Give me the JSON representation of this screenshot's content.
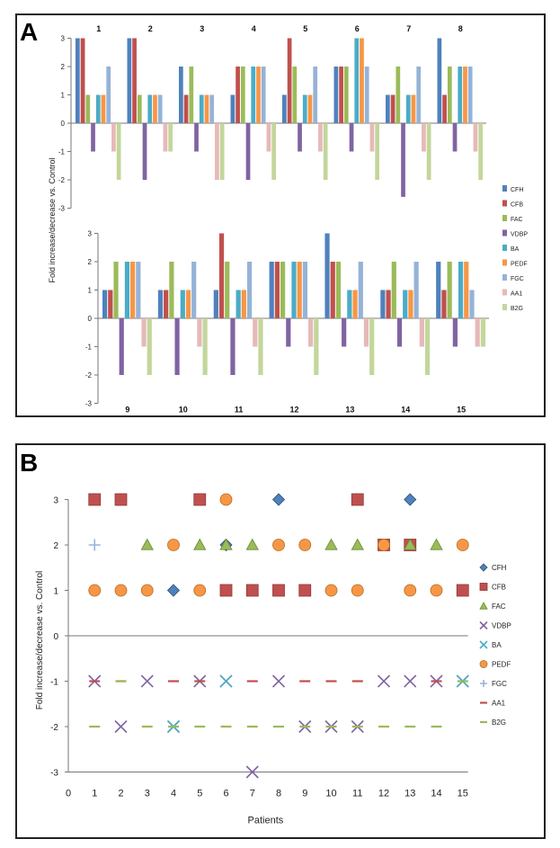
{
  "panel_a_letter": "A",
  "panel_b_letter": "B",
  "chart_data": [
    {
      "type": "bar",
      "panel": "A",
      "ylabel": "Fold increase/decrease vs. Control",
      "ylim": [
        -3,
        3
      ],
      "yticks": [
        3,
        2,
        1,
        0,
        -1,
        -2,
        -3
      ],
      "series_names": [
        "CFH",
        "CFB",
        "FAC",
        "VDBP",
        "BA",
        "PEDF",
        "FGC",
        "AA1",
        "B2G"
      ],
      "colors": [
        "#4f81bd",
        "#c0504d",
        "#9bbb59",
        "#8064a2",
        "#4bacc6",
        "#f79646",
        "#95b3d7",
        "#e6b9b8",
        "#c3d69b"
      ],
      "patients": [
        {
          "label": "1",
          "values": [
            3,
            3,
            1,
            -1,
            1,
            1,
            2,
            -1,
            -2
          ]
        },
        {
          "label": "2",
          "values": [
            3,
            3,
            1,
            -2,
            1,
            1,
            1,
            -1,
            -1
          ]
        },
        {
          "label": "3",
          "values": [
            2,
            1,
            2,
            -1,
            1,
            1,
            1,
            -2,
            -2
          ]
        },
        {
          "label": "4",
          "values": [
            1,
            2,
            2,
            -2,
            2,
            2,
            2,
            -1,
            -2
          ]
        },
        {
          "label": "5",
          "values": [
            1,
            3,
            2,
            -1,
            1,
            1,
            2,
            -1,
            -2
          ]
        },
        {
          "label": "6",
          "values": [
            2,
            2,
            2,
            -1,
            3,
            3,
            2,
            -1,
            -2
          ]
        },
        {
          "label": "7",
          "values": [
            1,
            1,
            2,
            -2.6,
            1,
            1,
            2,
            -1,
            -2
          ]
        },
        {
          "label": "8",
          "values": [
            3,
            1,
            2,
            -1,
            2,
            2,
            2,
            -1,
            -2
          ]
        },
        {
          "label": "9",
          "values": [
            1,
            1,
            2,
            -2,
            2,
            2,
            2,
            -1,
            -2
          ]
        },
        {
          "label": "10",
          "values": [
            1,
            1,
            2,
            -2,
            1,
            1,
            2,
            -1,
            -2
          ]
        },
        {
          "label": "11",
          "values": [
            1,
            3,
            2,
            -2,
            1,
            1,
            2,
            -1,
            -2
          ]
        },
        {
          "label": "12",
          "values": [
            2,
            2,
            2,
            -1,
            2,
            2,
            2,
            -1,
            -2
          ]
        },
        {
          "label": "13",
          "values": [
            3,
            2,
            2,
            -1,
            1,
            1,
            2,
            -1,
            -2
          ]
        },
        {
          "label": "14",
          "values": [
            1,
            1,
            2,
            -1,
            1,
            1,
            2,
            -1,
            -2
          ]
        },
        {
          "label": "15",
          "values": [
            2,
            1,
            2,
            -1,
            2,
            2,
            1,
            -1,
            -1
          ]
        }
      ],
      "legend_position": "right"
    },
    {
      "type": "scatter",
      "panel": "B",
      "xlabel": "Patients",
      "ylabel": "Fold increase/decrease vs. Control",
      "xlim": [
        0,
        15
      ],
      "ylim": [
        -3,
        3
      ],
      "xticks": [
        "0",
        "1",
        "2",
        "3",
        "4",
        "5",
        "6",
        "7",
        "8",
        "9",
        "10",
        "11",
        "12",
        "13",
        "14",
        "15"
      ],
      "yticks": [
        3,
        2,
        1,
        0,
        -1,
        -2,
        -3
      ],
      "series": [
        {
          "name": "CFH",
          "marker": "diamond",
          "color": "#4f81bd",
          "x": [
            4,
            6,
            8,
            13
          ],
          "y": [
            1,
            2,
            3,
            3
          ]
        },
        {
          "name": "CFB",
          "marker": "square",
          "color": "#c0504d",
          "x": [
            1,
            2,
            5,
            6,
            7,
            8,
            9,
            11,
            12,
            13,
            15
          ],
          "y": [
            3,
            3,
            3,
            1,
            1,
            1,
            1,
            3,
            2,
            2,
            1
          ]
        },
        {
          "name": "FAC",
          "marker": "triangle",
          "color": "#9bbb59",
          "x": [
            3,
            5,
            6,
            7,
            10,
            11,
            13,
            14
          ],
          "y": [
            2,
            2,
            2,
            2,
            2,
            2,
            2,
            2
          ]
        },
        {
          "name": "VDBP",
          "marker": "x",
          "color": "#8064a2",
          "x": [
            1,
            2,
            3,
            4,
            5,
            6,
            7,
            8,
            9,
            10,
            11,
            12,
            13,
            14,
            15
          ],
          "y": [
            -1,
            -2,
            -1,
            -2,
            -1,
            -1,
            -3,
            -1,
            -2,
            -2,
            -2,
            -1,
            -1,
            -1,
            -1
          ]
        },
        {
          "name": "BA",
          "marker": "x",
          "color": "#4bacc6",
          "x": [
            4,
            6,
            15
          ],
          "y": [
            -2,
            -1,
            -1
          ]
        },
        {
          "name": "PEDF",
          "marker": "circle",
          "color": "#f79646",
          "x": [
            1,
            2,
            3,
            4,
            5,
            6,
            8,
            9,
            10,
            11,
            12,
            13,
            14,
            15
          ],
          "y": [
            1,
            1,
            1,
            2,
            1,
            3,
            2,
            2,
            1,
            1,
            2,
            1,
            1,
            2
          ]
        },
        {
          "name": "FGC",
          "marker": "plus",
          "color": "#95b3d7",
          "x": [
            1
          ],
          "y": [
            2
          ]
        },
        {
          "name": "AA1",
          "marker": "dash",
          "color": "#c0504d",
          "x": [
            1,
            2,
            4,
            5,
            7,
            9,
            10,
            11,
            14
          ],
          "y": [
            -1,
            -1,
            -1,
            -1,
            -1,
            -1,
            -1,
            -1,
            -1
          ]
        },
        {
          "name": "B2G",
          "marker": "dash",
          "color": "#9bbb59",
          "x": [
            1,
            2,
            3,
            4,
            5,
            6,
            7,
            8,
            9,
            10,
            11,
            12,
            13,
            14,
            15
          ],
          "y": [
            -2,
            -1,
            -2,
            -2,
            -2,
            -2,
            -2,
            -2,
            -2,
            -2,
            -2,
            -2,
            -2,
            -2,
            -1
          ]
        }
      ],
      "legend_position": "right"
    }
  ]
}
